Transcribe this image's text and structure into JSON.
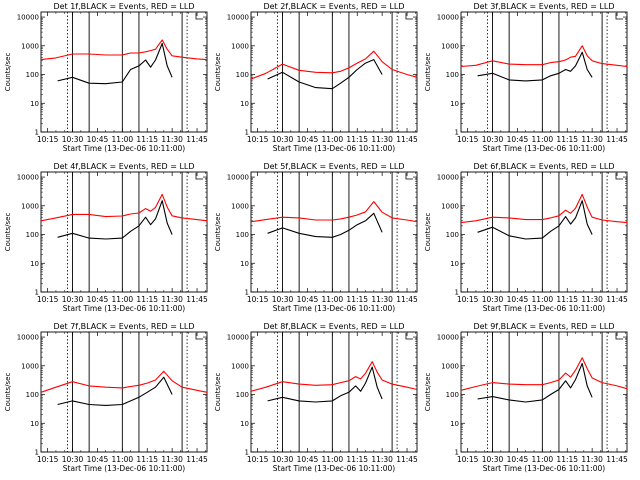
{
  "figure": {
    "panel_layout": "3x3 grid",
    "frame_color": "#000000",
    "series_colors": {
      "events": "#000000",
      "lld": "#ff0000"
    },
    "y_axis": {
      "scale": "log",
      "ylim": [
        1,
        15000
      ],
      "ticks": [
        1,
        10,
        100,
        1000,
        10000
      ],
      "tick_labels": [
        "1",
        "10",
        "100",
        "1000",
        "10000"
      ]
    },
    "x_axis": {
      "tick_labels": [
        "10:15",
        "10:30",
        "10:45",
        "11:00",
        "11:15",
        "11:30",
        "11:45"
      ]
    }
  },
  "chart_data": [
    {
      "type": "line",
      "title": "Det 1f,BLACK = Events, RED = LLD",
      "ylabel": "Counts/sec",
      "xlabel": "Start Time (13-Dec-06 10:11:00)",
      "x_ticks": [
        "10:15",
        "10:30",
        "10:45",
        "11:00",
        "11:15",
        "11:30",
        "11:45"
      ],
      "ylim": [
        1,
        15000
      ],
      "yscale": "log",
      "y_ticks": [
        "1",
        "10",
        "100",
        "1000",
        "10000"
      ],
      "series": [
        {
          "key": "lld",
          "color": "#ff0000",
          "x": [
            "10:11",
            "10:20",
            "10:30",
            "10:40",
            "10:50",
            "11:00",
            "11:05",
            "11:10",
            "11:14",
            "11:17",
            "11:20",
            "11:24",
            "11:27",
            "11:30",
            "11:36",
            "11:45",
            "11:51"
          ],
          "values": [
            330,
            380,
            520,
            520,
            480,
            480,
            560,
            560,
            620,
            680,
            760,
            1600,
            760,
            450,
            400,
            350,
            330
          ]
        },
        {
          "key": "events",
          "color": "#000000",
          "x": [
            "10:21",
            "10:30",
            "10:40",
            "10:50",
            "11:00",
            "11:05",
            "11:10",
            "11:14",
            "11:17",
            "11:20",
            "11:24",
            "11:27",
            "11:30"
          ],
          "values": [
            60,
            80,
            50,
            48,
            55,
            150,
            200,
            320,
            180,
            320,
            1200,
            200,
            80
          ]
        }
      ]
    },
    {
      "type": "line",
      "title": "Det 2f,BLACK = Events, RED = LLD",
      "ylabel": "Counts/sec",
      "xlabel": "Start Time (13-Dec-06 10:11:00)",
      "x_ticks": [
        "10:15",
        "10:30",
        "10:45",
        "11:00",
        "11:15",
        "11:30",
        "11:45"
      ],
      "ylim": [
        1,
        15000
      ],
      "yscale": "log",
      "y_ticks": [
        "1",
        "10",
        "100",
        "1000",
        "10000"
      ],
      "series": [
        {
          "key": "lld",
          "color": "#ff0000",
          "x": [
            "10:11",
            "10:20",
            "10:30",
            "10:40",
            "10:50",
            "11:00",
            "11:05",
            "11:10",
            "11:15",
            "11:20",
            "11:25",
            "11:30",
            "11:36",
            "11:45",
            "11:51"
          ],
          "values": [
            70,
            110,
            230,
            140,
            120,
            115,
            130,
            170,
            250,
            350,
            650,
            280,
            150,
            100,
            80
          ]
        },
        {
          "key": "events",
          "color": "#000000",
          "x": [
            "10:21",
            "10:30",
            "10:40",
            "10:50",
            "11:00",
            "11:05",
            "11:10",
            "11:15",
            "11:20",
            "11:25",
            "11:30"
          ],
          "values": [
            70,
            120,
            55,
            35,
            32,
            50,
            80,
            150,
            250,
            330,
            100
          ]
        }
      ]
    },
    {
      "type": "line",
      "title": "Det 3f,BLACK = Events, RED = LLD",
      "ylabel": "Counts/sec",
      "xlabel": "Start Time (13-Dec-06 10:11:00)",
      "x_ticks": [
        "10:15",
        "10:30",
        "10:45",
        "11:00",
        "11:15",
        "11:30",
        "11:45"
      ],
      "ylim": [
        1,
        15000
      ],
      "yscale": "log",
      "y_ticks": [
        "1",
        "10",
        "100",
        "1000",
        "10000"
      ],
      "series": [
        {
          "key": "lld",
          "color": "#ff0000",
          "x": [
            "10:11",
            "10:20",
            "10:30",
            "10:40",
            "10:50",
            "11:00",
            "11:05",
            "11:10",
            "11:14",
            "11:17",
            "11:20",
            "11:24",
            "11:27",
            "11:30",
            "11:36",
            "11:45",
            "11:51"
          ],
          "values": [
            190,
            210,
            300,
            230,
            220,
            220,
            260,
            280,
            320,
            400,
            430,
            1000,
            450,
            300,
            240,
            210,
            190
          ]
        },
        {
          "key": "events",
          "color": "#000000",
          "x": [
            "10:21",
            "10:30",
            "10:40",
            "10:50",
            "11:00",
            "11:05",
            "11:10",
            "11:14",
            "11:17",
            "11:20",
            "11:24",
            "11:27",
            "11:30"
          ],
          "values": [
            90,
            110,
            65,
            60,
            65,
            90,
            110,
            150,
            130,
            200,
            600,
            150,
            80
          ]
        }
      ]
    },
    {
      "type": "line",
      "title": "Det 4f,BLACK = Events, RED = LLD",
      "ylabel": "Counts/sec",
      "xlabel": "Start Time (13-Dec-06 10:11:00)",
      "x_ticks": [
        "10:15",
        "10:30",
        "10:45",
        "11:00",
        "11:15",
        "11:30",
        "11:45"
      ],
      "ylim": [
        1,
        15000
      ],
      "yscale": "log",
      "y_ticks": [
        "1",
        "10",
        "100",
        "1000",
        "10000"
      ],
      "series": [
        {
          "key": "lld",
          "color": "#ff0000",
          "x": [
            "10:11",
            "10:20",
            "10:30",
            "10:40",
            "10:50",
            "11:00",
            "11:05",
            "11:10",
            "11:14",
            "11:17",
            "11:20",
            "11:24",
            "11:27",
            "11:30",
            "11:36",
            "11:45",
            "11:51"
          ],
          "values": [
            300,
            380,
            500,
            500,
            420,
            440,
            520,
            560,
            800,
            650,
            880,
            2500,
            900,
            450,
            380,
            330,
            300
          ]
        },
        {
          "key": "events",
          "color": "#000000",
          "x": [
            "10:21",
            "10:30",
            "10:40",
            "10:50",
            "11:00",
            "11:05",
            "11:10",
            "11:14",
            "11:17",
            "11:20",
            "11:24",
            "11:27",
            "11:30"
          ],
          "values": [
            80,
            110,
            75,
            70,
            75,
            130,
            200,
            400,
            220,
            350,
            1500,
            250,
            100
          ]
        }
      ]
    },
    {
      "type": "line",
      "title": "Det 5f,BLACK = Events, RED = LLD",
      "ylabel": "Counts/sec",
      "xlabel": "Start Time (13-Dec-06 10:11:00)",
      "x_ticks": [
        "10:15",
        "10:30",
        "10:45",
        "11:00",
        "11:15",
        "11:30",
        "11:45"
      ],
      "ylim": [
        1,
        15000
      ],
      "yscale": "log",
      "y_ticks": [
        "1",
        "10",
        "100",
        "1000",
        "10000"
      ],
      "series": [
        {
          "key": "lld",
          "color": "#ff0000",
          "x": [
            "10:11",
            "10:20",
            "10:30",
            "10:40",
            "10:50",
            "11:00",
            "11:05",
            "11:10",
            "11:15",
            "11:20",
            "11:25",
            "11:30",
            "11:36",
            "11:45",
            "11:51"
          ],
          "values": [
            280,
            330,
            400,
            380,
            320,
            320,
            350,
            400,
            480,
            620,
            1400,
            600,
            380,
            320,
            280
          ]
        },
        {
          "key": "events",
          "color": "#000000",
          "x": [
            "10:21",
            "10:30",
            "10:40",
            "10:50",
            "11:00",
            "11:05",
            "11:10",
            "11:15",
            "11:20",
            "11:25",
            "11:30"
          ],
          "values": [
            110,
            170,
            110,
            85,
            80,
            100,
            140,
            220,
            300,
            550,
            120
          ]
        }
      ]
    },
    {
      "type": "line",
      "title": "Det 6f,BLACK = Events, RED = LLD",
      "ylabel": "Counts/sec",
      "xlabel": "Start Time (13-Dec-06 10:11:00)",
      "x_ticks": [
        "10:15",
        "10:30",
        "10:45",
        "11:00",
        "11:15",
        "11:30",
        "11:45"
      ],
      "ylim": [
        1,
        15000
      ],
      "yscale": "log",
      "y_ticks": [
        "1",
        "10",
        "100",
        "1000",
        "10000"
      ],
      "series": [
        {
          "key": "lld",
          "color": "#ff0000",
          "x": [
            "10:11",
            "10:20",
            "10:30",
            "10:40",
            "10:50",
            "11:00",
            "11:05",
            "11:10",
            "11:14",
            "11:17",
            "11:20",
            "11:24",
            "11:27",
            "11:30",
            "11:36",
            "11:45",
            "11:51"
          ],
          "values": [
            260,
            300,
            400,
            380,
            330,
            330,
            380,
            450,
            700,
            550,
            820,
            2500,
            900,
            400,
            320,
            280,
            260
          ]
        },
        {
          "key": "events",
          "color": "#000000",
          "x": [
            "10:21",
            "10:30",
            "10:40",
            "10:50",
            "11:00",
            "11:05",
            "11:10",
            "11:14",
            "11:17",
            "11:20",
            "11:24",
            "11:27",
            "11:30"
          ],
          "values": [
            120,
            180,
            90,
            70,
            75,
            130,
            200,
            420,
            230,
            380,
            1500,
            230,
            100
          ]
        }
      ]
    },
    {
      "type": "line",
      "title": "Det 7f,BLACK = Events, RED = LLD",
      "ylabel": "Counts/sec",
      "xlabel": "Start Time (13-Dec-06 10:11:00)",
      "x_ticks": [
        "10:15",
        "10:30",
        "10:45",
        "11:00",
        "11:15",
        "11:30",
        "11:45"
      ],
      "ylim": [
        1,
        15000
      ],
      "yscale": "log",
      "y_ticks": [
        "1",
        "10",
        "100",
        "1000",
        "10000"
      ],
      "series": [
        {
          "key": "lld",
          "color": "#ff0000",
          "x": [
            "10:11",
            "10:20",
            "10:30",
            "10:40",
            "10:50",
            "11:00",
            "11:05",
            "11:10",
            "11:15",
            "11:20",
            "11:25",
            "11:30",
            "11:36",
            "11:45",
            "11:51"
          ],
          "values": [
            120,
            180,
            280,
            200,
            180,
            170,
            190,
            210,
            250,
            320,
            650,
            300,
            180,
            140,
            120
          ]
        },
        {
          "key": "events",
          "color": "#000000",
          "x": [
            "10:21",
            "10:30",
            "10:40",
            "10:50",
            "11:00",
            "11:05",
            "11:10",
            "11:15",
            "11:20",
            "11:25",
            "11:30"
          ],
          "values": [
            45,
            60,
            45,
            42,
            45,
            60,
            80,
            120,
            180,
            400,
            100
          ]
        }
      ]
    },
    {
      "type": "line",
      "title": "Det 8f,BLACK = Events, RED = LLD",
      "ylabel": "Counts/sec",
      "xlabel": "Start Time (13-Dec-06 10:11:00)",
      "x_ticks": [
        "10:15",
        "10:30",
        "10:45",
        "11:00",
        "11:15",
        "11:30",
        "11:45"
      ],
      "ylim": [
        1,
        15000
      ],
      "yscale": "log",
      "y_ticks": [
        "1",
        "10",
        "100",
        "1000",
        "10000"
      ],
      "series": [
        {
          "key": "lld",
          "color": "#ff0000",
          "x": [
            "10:11",
            "10:20",
            "10:30",
            "10:40",
            "10:50",
            "11:00",
            "11:05",
            "11:10",
            "11:14",
            "11:17",
            "11:20",
            "11:24",
            "11:27",
            "11:30",
            "11:36",
            "11:45",
            "11:51"
          ],
          "values": [
            130,
            180,
            280,
            230,
            210,
            220,
            260,
            300,
            420,
            350,
            550,
            1400,
            600,
            320,
            230,
            180,
            150
          ]
        },
        {
          "key": "events",
          "color": "#000000",
          "x": [
            "10:21",
            "10:30",
            "10:40",
            "10:50",
            "11:00",
            "11:05",
            "11:10",
            "11:14",
            "11:17",
            "11:20",
            "11:24",
            "11:27",
            "11:30"
          ],
          "values": [
            60,
            80,
            60,
            55,
            60,
            90,
            120,
            200,
            130,
            250,
            900,
            180,
            70
          ]
        }
      ]
    },
    {
      "type": "line",
      "title": "Det 9f,BLACK = Events, RED = LLD",
      "ylabel": "Counts/sec",
      "xlabel": "Start Time (13-Dec-06 10:11:00)",
      "x_ticks": [
        "10:15",
        "10:30",
        "10:45",
        "11:00",
        "11:15",
        "11:30",
        "11:45"
      ],
      "ylim": [
        1,
        15000
      ],
      "yscale": "log",
      "y_ticks": [
        "1",
        "10",
        "100",
        "1000",
        "10000"
      ],
      "series": [
        {
          "key": "lld",
          "color": "#ff0000",
          "x": [
            "10:11",
            "10:20",
            "10:30",
            "10:40",
            "10:50",
            "11:00",
            "11:05",
            "11:10",
            "11:14",
            "11:17",
            "11:20",
            "11:24",
            "11:27",
            "11:30",
            "11:36",
            "11:45",
            "11:51"
          ],
          "values": [
            140,
            190,
            260,
            230,
            220,
            220,
            260,
            320,
            560,
            400,
            700,
            1900,
            800,
            380,
            260,
            200,
            160
          ]
        },
        {
          "key": "events",
          "color": "#000000",
          "x": [
            "10:21",
            "10:30",
            "10:40",
            "10:50",
            "11:00",
            "11:05",
            "11:10",
            "11:14",
            "11:17",
            "11:20",
            "11:24",
            "11:27",
            "11:30"
          ],
          "values": [
            70,
            85,
            65,
            55,
            65,
            100,
            150,
            300,
            170,
            330,
            1200,
            200,
            80
          ]
        }
      ]
    }
  ]
}
